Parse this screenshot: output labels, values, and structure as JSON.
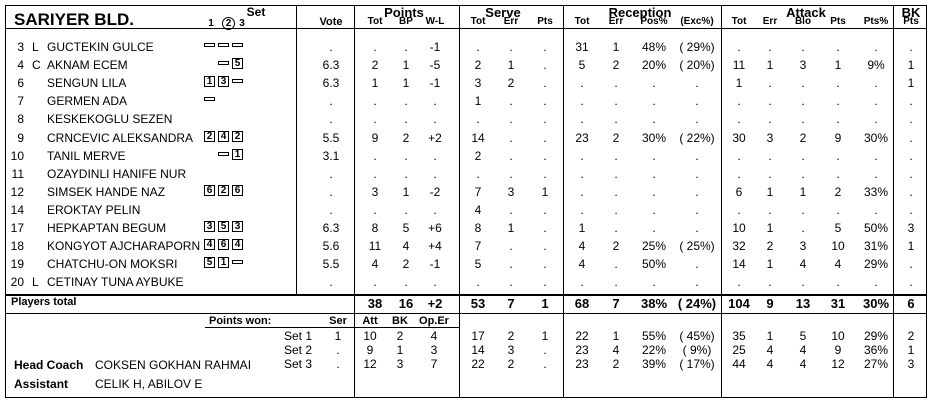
{
  "team": "SARIYER BLD.",
  "headers": {
    "set": "Set",
    "set_nums": [
      "1",
      "2",
      "3"
    ],
    "circled_set": "2",
    "vote": "Vote",
    "groups": {
      "points": "Points",
      "serve": "Serve",
      "reception": "Reception",
      "attack": "Attack",
      "bk": "BK"
    },
    "points": [
      "Tot",
      "BP",
      "W-L"
    ],
    "serve": [
      "Tot",
      "Err",
      "Pts"
    ],
    "reception": [
      "Tot",
      "Err",
      "Pos%",
      "(Exc%)"
    ],
    "attack": [
      "Tot",
      "Err",
      "Blo",
      "Pts",
      "Pts%"
    ],
    "bk": "Pts"
  },
  "players": [
    {
      "num": "3",
      "role": "L",
      "name": "GUCTEKIN GULCE",
      "sets": [
        "b",
        "b",
        "b"
      ],
      "vote": ".",
      "p_tot": ".",
      "p_bp": ".",
      "p_wl": "-1",
      "s_tot": ".",
      "s_err": ".",
      "s_pts": ".",
      "r_tot": "31",
      "r_err": "1",
      "r_pos": "48%",
      "r_exc": "( 29%)",
      "a_tot": ".",
      "a_err": ".",
      "a_blo": ".",
      "a_pts": ".",
      "a_pct": ".",
      "bk": "."
    },
    {
      "num": "4",
      "role": "C",
      "name": "AKNAM ECEM",
      "sets": [
        "",
        "b",
        "5"
      ],
      "vote": "6.3",
      "p_tot": "2",
      "p_bp": "1",
      "p_wl": "-5",
      "s_tot": "2",
      "s_err": "1",
      "s_pts": ".",
      "r_tot": "5",
      "r_err": "2",
      "r_pos": "20%",
      "r_exc": "( 20%)",
      "a_tot": "11",
      "a_err": "1",
      "a_blo": "3",
      "a_pts": "1",
      "a_pct": "9%",
      "bk": "1"
    },
    {
      "num": "6",
      "role": "",
      "name": "SENGUN LILA",
      "sets": [
        "1",
        "3",
        "b"
      ],
      "vote": "6.3",
      "p_tot": "1",
      "p_bp": "1",
      "p_wl": "-1",
      "s_tot": "3",
      "s_err": "2",
      "s_pts": ".",
      "r_tot": ".",
      "r_err": ".",
      "r_pos": ".",
      "r_exc": ".",
      "a_tot": "1",
      "a_err": ".",
      "a_blo": ".",
      "a_pts": ".",
      "a_pct": ".",
      "bk": "1"
    },
    {
      "num": "7",
      "role": "",
      "name": "GERMEN ADA",
      "sets": [
        "b",
        "",
        ""
      ],
      "vote": ".",
      "p_tot": ".",
      "p_bp": ".",
      "p_wl": ".",
      "s_tot": "1",
      "s_err": ".",
      "s_pts": ".",
      "r_tot": ".",
      "r_err": ".",
      "r_pos": ".",
      "r_exc": ".",
      "a_tot": ".",
      "a_err": ".",
      "a_blo": ".",
      "a_pts": ".",
      "a_pct": ".",
      "bk": "."
    },
    {
      "num": "8",
      "role": "",
      "name": "KESKEKOGLU SEZEN",
      "sets": [
        "",
        "",
        ""
      ],
      "vote": ".",
      "p_tot": ".",
      "p_bp": ".",
      "p_wl": ".",
      "s_tot": ".",
      "s_err": ".",
      "s_pts": ".",
      "r_tot": ".",
      "r_err": ".",
      "r_pos": ".",
      "r_exc": ".",
      "a_tot": ".",
      "a_err": ".",
      "a_blo": ".",
      "a_pts": ".",
      "a_pct": ".",
      "bk": "."
    },
    {
      "num": "9",
      "role": "",
      "name": "CRNCEVIC ALEKSANDRA",
      "sets": [
        "2",
        "4",
        "2"
      ],
      "vote": "5.5",
      "p_tot": "9",
      "p_bp": "2",
      "p_wl": "+2",
      "s_tot": "14",
      "s_err": ".",
      "s_pts": ".",
      "r_tot": "23",
      "r_err": "2",
      "r_pos": "30%",
      "r_exc": "( 22%)",
      "a_tot": "30",
      "a_err": "3",
      "a_blo": "2",
      "a_pts": "9",
      "a_pct": "30%",
      "bk": "."
    },
    {
      "num": "10",
      "role": "",
      "name": "TANIL MERVE",
      "sets": [
        "",
        "b",
        "1"
      ],
      "vote": "3.1",
      "p_tot": ".",
      "p_bp": ".",
      "p_wl": ".",
      "s_tot": "2",
      "s_err": ".",
      "s_pts": ".",
      "r_tot": ".",
      "r_err": ".",
      "r_pos": ".",
      "r_exc": ".",
      "a_tot": ".",
      "a_err": ".",
      "a_blo": ".",
      "a_pts": ".",
      "a_pct": ".",
      "bk": "."
    },
    {
      "num": "11",
      "role": "",
      "name": "OZAYDINLI HANIFE NUR",
      "sets": [
        "",
        "",
        ""
      ],
      "vote": ".",
      "p_tot": ".",
      "p_bp": ".",
      "p_wl": ".",
      "s_tot": ".",
      "s_err": ".",
      "s_pts": ".",
      "r_tot": ".",
      "r_err": ".",
      "r_pos": ".",
      "r_exc": ".",
      "a_tot": ".",
      "a_err": ".",
      "a_blo": ".",
      "a_pts": ".",
      "a_pct": ".",
      "bk": "."
    },
    {
      "num": "12",
      "role": "",
      "name": "SIMSEK HANDE NAZ",
      "sets": [
        "6",
        "2",
        "6"
      ],
      "vote": ".",
      "p_tot": "3",
      "p_bp": "1",
      "p_wl": "-2",
      "s_tot": "7",
      "s_err": "3",
      "s_pts": "1",
      "r_tot": ".",
      "r_err": ".",
      "r_pos": ".",
      "r_exc": ".",
      "a_tot": "6",
      "a_err": "1",
      "a_blo": "1",
      "a_pts": "2",
      "a_pct": "33%",
      "bk": "."
    },
    {
      "num": "14",
      "role": "",
      "name": "EROKTAY PELIN",
      "sets": [
        "",
        "",
        ""
      ],
      "vote": ".",
      "p_tot": ".",
      "p_bp": ".",
      "p_wl": ".",
      "s_tot": "4",
      "s_err": ".",
      "s_pts": ".",
      "r_tot": ".",
      "r_err": ".",
      "r_pos": ".",
      "r_exc": ".",
      "a_tot": ".",
      "a_err": ".",
      "a_blo": ".",
      "a_pts": ".",
      "a_pct": ".",
      "bk": "."
    },
    {
      "num": "17",
      "role": "",
      "name": "HEPKAPTAN BEGUM",
      "sets": [
        "3",
        "5",
        "3"
      ],
      "vote": "6.3",
      "p_tot": "8",
      "p_bp": "5",
      "p_wl": "+6",
      "s_tot": "8",
      "s_err": "1",
      "s_pts": ".",
      "r_tot": "1",
      "r_err": ".",
      "r_pos": ".",
      "r_exc": ".",
      "a_tot": "10",
      "a_err": "1",
      "a_blo": ".",
      "a_pts": "5",
      "a_pct": "50%",
      "bk": "3"
    },
    {
      "num": "18",
      "role": "",
      "name": "KONGYOT AJCHARAPORN",
      "sets": [
        "4",
        "6",
        "4"
      ],
      "vote": "5.6",
      "p_tot": "11",
      "p_bp": "4",
      "p_wl": "+4",
      "s_tot": "7",
      "s_err": ".",
      "s_pts": ".",
      "r_tot": "4",
      "r_err": "2",
      "r_pos": "25%",
      "r_exc": "( 25%)",
      "a_tot": "32",
      "a_err": "2",
      "a_blo": "3",
      "a_pts": "10",
      "a_pct": "31%",
      "bk": "1"
    },
    {
      "num": "19",
      "role": "",
      "name": "CHATCHU-ON MOKSRI",
      "sets": [
        "5",
        "1",
        "b"
      ],
      "vote": "5.5",
      "p_tot": "4",
      "p_bp": "2",
      "p_wl": "-1",
      "s_tot": "5",
      "s_err": ".",
      "s_pts": ".",
      "r_tot": "4",
      "r_err": ".",
      "r_pos": "50%",
      "r_exc": ".",
      "a_tot": "14",
      "a_err": "1",
      "a_blo": "4",
      "a_pts": "4",
      "a_pct": "29%",
      "bk": "."
    },
    {
      "num": "20",
      "role": "L",
      "name": "CETINAY TUNA AYBUKE",
      "sets": [
        "",
        "",
        ""
      ],
      "vote": ".",
      "p_tot": ".",
      "p_bp": ".",
      "p_wl": ".",
      "s_tot": ".",
      "s_err": ".",
      "s_pts": ".",
      "r_tot": ".",
      "r_err": ".",
      "r_pos": ".",
      "r_exc": ".",
      "a_tot": ".",
      "a_err": ".",
      "a_blo": ".",
      "a_pts": ".",
      "a_pct": ".",
      "bk": "."
    }
  ],
  "totals": {
    "label": "Players total",
    "p_tot": "38",
    "p_bp": "16",
    "p_wl": "+2",
    "s_tot": "53",
    "s_err": "7",
    "s_pts": "1",
    "r_tot": "68",
    "r_err": "7",
    "r_pos": "38%",
    "r_exc": "( 24%)",
    "a_tot": "104",
    "a_err": "9",
    "a_blo": "13",
    "a_pts": "31",
    "a_pct": "30%",
    "bk": "6"
  },
  "points_won": {
    "label": "Points won:",
    "headers": [
      "Ser",
      "Att",
      "BK",
      "Op.Er"
    ],
    "sets": [
      {
        "label": "Set 1",
        "ser": "1",
        "att": "10",
        "bk": "2",
        "oper": "4",
        "s_tot": "17",
        "s_err": "2",
        "s_pts": "1",
        "r_tot": "22",
        "r_err": "1",
        "r_pos": "55%",
        "r_exc": "( 45%)",
        "a_tot": "35",
        "a_err": "1",
        "a_blo": "5",
        "a_pts": "10",
        "a_pct": "29%"
      },
      {
        "label": "Set 2",
        "ser": ".",
        "att": "9",
        "bk": "1",
        "oper": "3",
        "s_tot": "14",
        "s_err": "3",
        "s_pts": ".",
        "r_tot": "23",
        "r_err": "4",
        "r_pos": "22%",
        "r_exc": "(  9%)",
        "a_tot": "25",
        "a_err": "4",
        "a_blo": "4",
        "a_pts": "9",
        "a_pct": "36%"
      },
      {
        "label": "Set 3",
        "ser": ".",
        "att": "12",
        "bk": "3",
        "oper": "7",
        "s_tot": "22",
        "s_err": "2",
        "s_pts": ".",
        "r_tot": "23",
        "r_err": "2",
        "r_pos": "39%",
        "r_exc": "( 17%)",
        "a_tot": "44",
        "a_err": "4",
        "a_blo": "4",
        "a_pts": "12",
        "a_pct": "27%"
      }
    ]
  },
  "staff": {
    "head_coach_label": "Head Coach",
    "head_coach": "COKSEN GOKHAN RAHMAI",
    "assistant_label": "Assistant",
    "assistant": "CELIK H, ABILOV E"
  }
}
